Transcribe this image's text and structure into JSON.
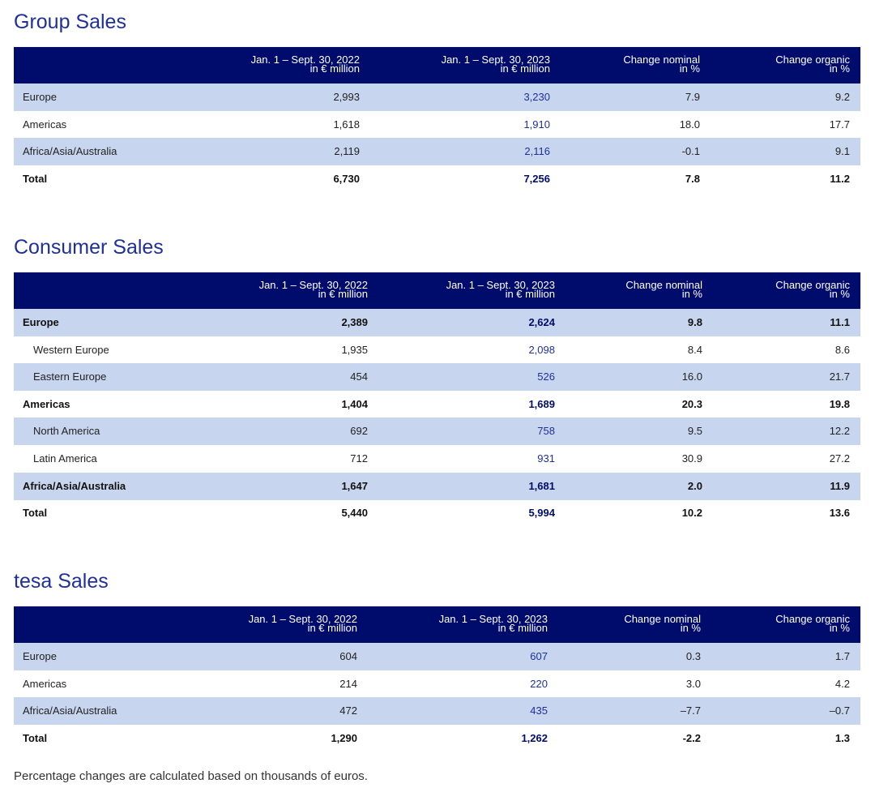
{
  "sections": [
    {
      "title": "Group Sales",
      "columns": [
        [
          "Jan. 1 – Sept. 30, 2022",
          "in € million"
        ],
        [
          "Jan. 1 – Sept. 30, 2023",
          "in € million"
        ],
        [
          "Change nominal",
          "in %"
        ],
        [
          "Change organic",
          "in %"
        ]
      ],
      "rows": [
        {
          "label": "Europe",
          "cells": [
            "2,993",
            "3,230",
            "7.9",
            "9.2"
          ]
        },
        {
          "label": "Americas",
          "cells": [
            "1,618",
            "1,910",
            "18.0",
            "17.7"
          ]
        },
        {
          "label": "Africa/Asia/Australia",
          "cells": [
            "2,119",
            "2,116",
            "-0.1",
            "9.1"
          ]
        },
        {
          "label": "Total",
          "cells": [
            "6,730",
            "7,256",
            "7.8",
            "11.2"
          ],
          "bold": true
        }
      ]
    },
    {
      "title": "Consumer Sales",
      "columns": [
        [
          "Jan. 1 – Sept. 30, 2022",
          "in € million"
        ],
        [
          "Jan. 1 – Sept. 30, 2023",
          "in € million"
        ],
        [
          "Change nominal",
          "in %"
        ],
        [
          "Change organic",
          "in %"
        ]
      ],
      "rows": [
        {
          "label": "Europe",
          "cells": [
            "2,389",
            "2,624",
            "9.8",
            "11.1"
          ],
          "bold": true
        },
        {
          "label": "Western Europe",
          "cells": [
            "1,935",
            "2,098",
            "8.4",
            "8.6"
          ],
          "indent": true
        },
        {
          "label": "Eastern Europe",
          "cells": [
            "454",
            "526",
            "16.0",
            "21.7"
          ],
          "indent": true
        },
        {
          "label": "Americas",
          "cells": [
            "1,404",
            "1,689",
            "20.3",
            "19.8"
          ],
          "bold": true
        },
        {
          "label": "North America",
          "cells": [
            "692",
            "758",
            "9.5",
            "12.2"
          ],
          "indent": true
        },
        {
          "label": "Latin America",
          "cells": [
            "712",
            "931",
            "30.9",
            "27.2"
          ],
          "indent": true
        },
        {
          "label": "Africa/Asia/Australia",
          "cells": [
            "1,647",
            "1,681",
            "2.0",
            "11.9"
          ],
          "bold": true
        },
        {
          "label": "Total",
          "cells": [
            "5,440",
            "5,994",
            "10.2",
            "13.6"
          ],
          "bold": true
        }
      ]
    },
    {
      "title": "tesa Sales",
      "columns": [
        [
          "Jan. 1 – Sept. 30, 2022",
          "in € million"
        ],
        [
          "Jan. 1 – Sept. 30, 2023",
          "in € million"
        ],
        [
          "Change nominal",
          "in %"
        ],
        [
          "Change organic",
          "in %"
        ]
      ],
      "rows": [
        {
          "label": "Europe",
          "cells": [
            "604",
            "607",
            "0.3",
            "1.7"
          ]
        },
        {
          "label": "Americas",
          "cells": [
            "214",
            "220",
            "3.0",
            "4.2"
          ]
        },
        {
          "label": "Africa/Asia/Australia",
          "cells": [
            "472",
            "435",
            "–7.7",
            "–0.7"
          ]
        },
        {
          "label": "Total",
          "cells": [
            "1,290",
            "1,262",
            "-2.2",
            "1.3"
          ],
          "bold": true
        }
      ]
    }
  ],
  "footnote": "Percentage changes are calculated based on thousands of euros."
}
